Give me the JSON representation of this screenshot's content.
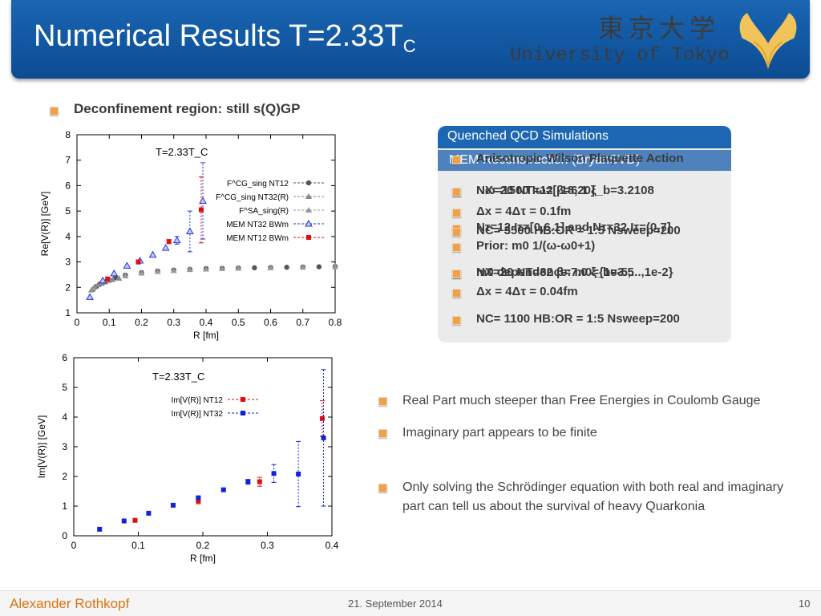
{
  "header": {
    "title_main": "Numerical Results T=2.33T",
    "title_sub": "C",
    "jp_name": "東京大学",
    "uni_name": "University of Tokyo"
  },
  "section": {
    "title": "Deconfinement region: still s(Q)GP"
  },
  "box": {
    "head1": "Quenched QCD Simulations",
    "head2": "MEM Reconstruction (BryanSVD)",
    "overlay_lines": [
      "Anisotropic Wilson Plaquette Action",
      "NX=20  NT=12  β=6.1  ξ_b=3.2108",
      "Nω=1500 Iω=[-18,20]",
      "Δx = 4Δτ = 0.1fm",
      "Nτ=12 Iτ=[0,6.1] and Nτ=32 Iτ=(0,7]",
      "NC= 3500  HB:OR = 1:5  Nsweep=200",
      "Prior: m0 1/(ω-ω0+1)",
      "NX=20  NT=32  β=7.0  ξ_b=3.5",
      "Δx = 4Δτ = 0.04fm",
      "NC= 1100  HB:OR = 1:5  Nsweep=200",
      "m0 dependence: m0={1e-5,...,1e-2}"
    ],
    "colors": {
      "head": "#1d66b2",
      "bullet": "#f0a04b"
    }
  },
  "right_items": [
    "Real Part much steeper than Free Energies in Coulomb Gauge",
    "Imaginary part appears to be finite",
    "Only solving the Schrödinger equation with both real and imaginary part can tell us about the survival of heavy Quarkonia"
  ],
  "footer": {
    "author": "Alexander Rothkopf",
    "date": "21. September 2014",
    "page": "10"
  },
  "chart_data": [
    {
      "type": "scatter",
      "annotation": "T=2.33T_C",
      "xlabel": "R [fm]",
      "ylabel": "Re[V(R)] [GeV]",
      "xlim": [
        0,
        0.8
      ],
      "ylim": [
        1,
        8
      ],
      "xticks": [
        0,
        0.1,
        0.2,
        0.3,
        0.4,
        0.5,
        0.6,
        0.7,
        0.8
      ],
      "yticks": [
        1,
        2,
        3,
        4,
        5,
        6,
        7,
        8
      ],
      "legend_position": "right",
      "series": [
        {
          "name": "F^CG_sing NT12",
          "color": "#555555",
          "marker": "circle",
          "x": [
            0.05,
            0.06,
            0.07,
            0.08,
            0.09,
            0.1,
            0.12,
            0.15,
            0.2,
            0.25,
            0.3,
            0.35,
            0.4,
            0.45,
            0.5,
            0.55,
            0.6,
            0.65,
            0.7,
            0.75,
            0.8
          ],
          "y": [
            1.92,
            2.03,
            2.12,
            2.18,
            2.22,
            2.28,
            2.38,
            2.48,
            2.58,
            2.64,
            2.68,
            2.71,
            2.74,
            2.75,
            2.76,
            2.77,
            2.78,
            2.79,
            2.8,
            2.81,
            2.82
          ]
        },
        {
          "name": "F^CG_sing NT32(R)",
          "color": "#888888",
          "marker": "triangle",
          "x": [
            0.045,
            0.055,
            0.065,
            0.075,
            0.085,
            0.095,
            0.11,
            0.13
          ],
          "y": [
            1.9,
            2.02,
            2.1,
            2.15,
            2.21,
            2.26,
            2.31,
            2.36
          ]
        },
        {
          "name": "F^SA_sing(R)",
          "color": "#999999",
          "marker": "triangle",
          "x": [
            0.05,
            0.1,
            0.15,
            0.2,
            0.25,
            0.3,
            0.35,
            0.4,
            0.45,
            0.5,
            0.6,
            0.7,
            0.8
          ],
          "y": [
            1.96,
            2.28,
            2.45,
            2.56,
            2.62,
            2.66,
            2.7,
            2.72,
            2.74,
            2.75,
            2.77,
            2.79,
            2.81
          ]
        },
        {
          "name": "MEM NT32 BWm",
          "color": "#2233dd",
          "marker": "triangle-open",
          "x": [
            0.04,
            0.08,
            0.115,
            0.155,
            0.195,
            0.235,
            0.275,
            0.31,
            0.35,
            0.39
          ],
          "y": [
            1.62,
            2.27,
            2.55,
            2.85,
            3.05,
            3.28,
            3.55,
            3.85,
            4.2,
            5.4
          ],
          "err": [
            0,
            0,
            0,
            0,
            0,
            0,
            0,
            0.15,
            0.8,
            1.5
          ]
        },
        {
          "name": "MEM NT12 BWm",
          "color": "#dd1111",
          "marker": "square",
          "x": [
            0.095,
            0.19,
            0.285,
            0.385
          ],
          "y": [
            2.33,
            3.0,
            3.8,
            5.05
          ],
          "err": [
            0.05,
            0.08,
            0.08,
            1.3
          ]
        }
      ]
    },
    {
      "type": "scatter",
      "annotation": "T=2.33T_C",
      "xlabel": "R [fm]",
      "ylabel": "Im[V(R)] [GeV]",
      "xlim": [
        0,
        0.4
      ],
      "ylim": [
        0,
        6
      ],
      "xticks": [
        0,
        0.1,
        0.2,
        0.3,
        0.4
      ],
      "yticks": [
        0,
        1,
        2,
        3,
        4,
        5,
        6
      ],
      "legend_position": "top",
      "series": [
        {
          "name": "Im[V(R)] NT12",
          "color": "#dd1111",
          "marker": "square",
          "x": [
            0.095,
            0.193,
            0.288,
            0.385
          ],
          "y": [
            0.52,
            1.18,
            1.82,
            3.95
          ],
          "err": [
            0.05,
            0.1,
            0.15,
            0.6
          ]
        },
        {
          "name": "Im[V(R)] NT32",
          "color": "#1122dd",
          "marker": "square",
          "x": [
            0.04,
            0.078,
            0.116,
            0.154,
            0.193,
            0.232,
            0.27,
            0.31,
            0.348,
            0.387
          ],
          "y": [
            0.22,
            0.5,
            0.76,
            1.03,
            1.28,
            1.55,
            1.82,
            2.1,
            2.08,
            3.3
          ],
          "err": [
            0,
            0,
            0,
            0,
            0.05,
            0.05,
            0.08,
            0.3,
            1.1,
            2.3
          ]
        }
      ]
    }
  ]
}
